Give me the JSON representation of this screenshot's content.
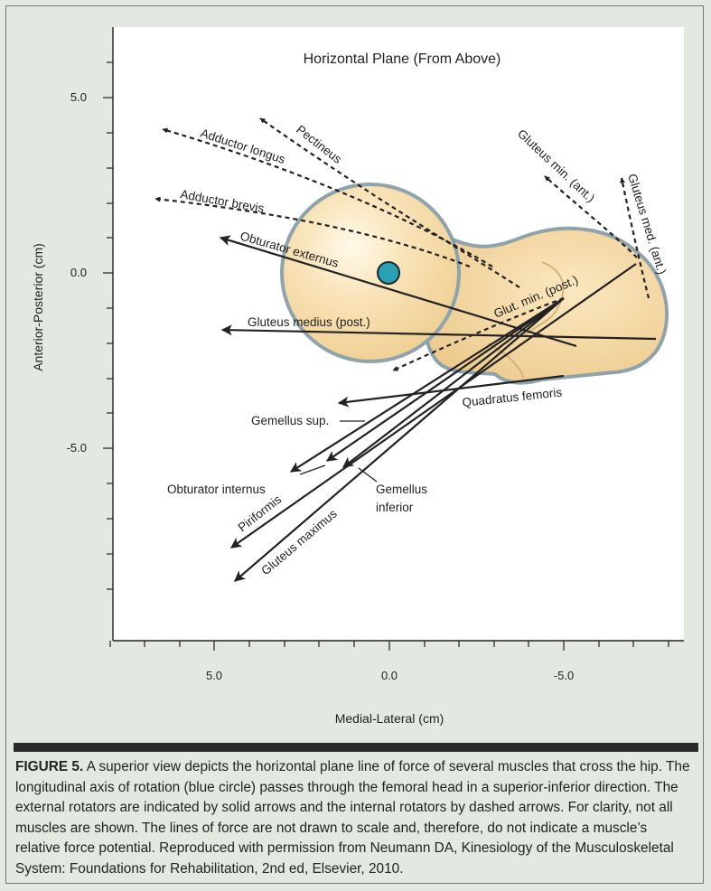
{
  "figure": {
    "title": "Horizontal Plane (From Above)",
    "y_axis_label": "Anterior-Posterior (cm)",
    "x_axis_label": "Medial-Lateral (cm)",
    "y_ticks": [
      "5.0",
      "0.0",
      "-5.0"
    ],
    "x_ticks": [
      "5.0",
      "0.0",
      "-5.0"
    ],
    "axis_of_rotation_color": "#2aa0b4",
    "bone_color": "#f7dfb0",
    "bone_outline_color": "#8ea3ac",
    "external_rotators_style": "solid arrows",
    "internal_rotators_style": "dashed arrows"
  },
  "muscles": {
    "adductor_longus": "Adductor longus",
    "pectineus": "Pectineus",
    "adductor_brevis": "Adductor brevis",
    "obturator_externus": "Obturator externus",
    "gluteus_min_ant": "Gluteus min. (ant.)",
    "gluteus_med_ant": "Gluteus med. (ant.)",
    "glut_min_post": "Glut. min. (post.)",
    "gluteus_medius_post": "Gluteus medius (post.)",
    "quadratus_femoris": "Quadratus femoris",
    "gemellus_sup": "Gemellus sup.",
    "obturator_internus": "Obturator internus",
    "gemellus_inferior_line1": "Gemellus",
    "gemellus_inferior_line2": "inferior",
    "piriformis": "Piriformis",
    "gluteus_maximus": "Gluteus maximus"
  },
  "caption": {
    "label": "FIGURE 5.",
    "text": " A superior view depicts the horizontal plane line of force of several muscles that cross the hip. The longitudinal axis of rotation (blue circle) passes through the femoral head in a superior-inferior direction. The external rotators are indicated by solid arrows and the internal rotators by dashed arrows. For clarity, not all muscles are shown. The lines of force are not drawn to scale and, therefore, do not indicate a muscle’s relative force potential. Reproduced with permission from Neumann DA, Kinesiology of the Musculoskeletal System: Foundations for Rehabilitation, 2nd ed, Elsevier, 2010."
  }
}
